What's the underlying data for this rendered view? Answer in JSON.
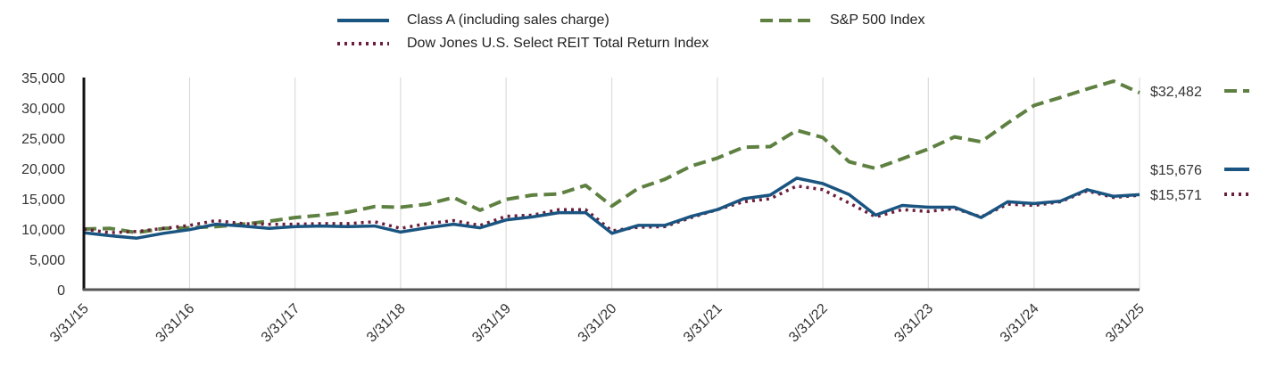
{
  "chart_data": {
    "type": "line",
    "title": "",
    "xlabel": "",
    "ylabel": "",
    "ylim": [
      0,
      35000
    ],
    "yticks": [
      0,
      5000,
      10000,
      15000,
      20000,
      25000,
      30000,
      35000
    ],
    "ytick_labels": [
      "0",
      "5,000",
      "10,000",
      "15,000",
      "20,000",
      "25,000",
      "30,000",
      "35,000"
    ],
    "xtick_labels": [
      "3/31/15",
      "3/31/16",
      "3/31/17",
      "3/31/18",
      "3/31/19",
      "3/31/20",
      "3/31/21",
      "3/31/22",
      "3/31/23",
      "3/31/24",
      "3/31/25"
    ],
    "grid": "vertical",
    "legend_placement": "top-center",
    "series": [
      {
        "name": "Class A (including sales charge)",
        "color": "#1a5480",
        "style": "solid",
        "end_label": "$15,676",
        "points": [
          [
            "3/31/15",
            9400
          ],
          [
            "6/30/15",
            8900
          ],
          [
            "9/30/15",
            8500
          ],
          [
            "12/31/15",
            9300
          ],
          [
            "3/31/16",
            9900
          ],
          [
            "6/30/16",
            10800
          ],
          [
            "9/30/16",
            10500
          ],
          [
            "12/31/16",
            10100
          ],
          [
            "3/31/17",
            10400
          ],
          [
            "6/30/17",
            10500
          ],
          [
            "9/30/17",
            10400
          ],
          [
            "12/31/17",
            10500
          ],
          [
            "3/31/18",
            9500
          ],
          [
            "6/30/18",
            10200
          ],
          [
            "9/30/18",
            10800
          ],
          [
            "12/31/18",
            10200
          ],
          [
            "3/31/19",
            11500
          ],
          [
            "6/30/19",
            12000
          ],
          [
            "9/30/19",
            12700
          ],
          [
            "12/31/19",
            12700
          ],
          [
            "3/31/20",
            9300
          ],
          [
            "6/30/20",
            10600
          ],
          [
            "9/30/20",
            10600
          ],
          [
            "12/31/20",
            12100
          ],
          [
            "3/31/21",
            13200
          ],
          [
            "6/30/21",
            15000
          ],
          [
            "9/30/21",
            15600
          ],
          [
            "12/31/21",
            18400
          ],
          [
            "3/31/22",
            17500
          ],
          [
            "6/30/22",
            15700
          ],
          [
            "9/30/22",
            12300
          ],
          [
            "12/31/22",
            13900
          ],
          [
            "3/31/23",
            13600
          ],
          [
            "6/30/23",
            13600
          ],
          [
            "9/30/23",
            11900
          ],
          [
            "12/31/23",
            14500
          ],
          [
            "3/31/24",
            14200
          ],
          [
            "6/30/24",
            14600
          ],
          [
            "9/30/24",
            16500
          ],
          [
            "12/31/24",
            15400
          ],
          [
            "3/31/25",
            15676
          ]
        ]
      },
      {
        "name": "S&P 500 Index",
        "color": "#5e8040",
        "style": "dashed",
        "end_label": "$32,482",
        "points": [
          [
            "3/31/15",
            10000
          ],
          [
            "6/30/15",
            10100
          ],
          [
            "9/30/15",
            9400
          ],
          [
            "12/31/15",
            10100
          ],
          [
            "3/31/16",
            10200
          ],
          [
            "6/30/16",
            10400
          ],
          [
            "9/30/16",
            10800
          ],
          [
            "12/31/16",
            11300
          ],
          [
            "3/31/17",
            11900
          ],
          [
            "6/30/17",
            12300
          ],
          [
            "9/30/17",
            12800
          ],
          [
            "12/31/17",
            13700
          ],
          [
            "3/31/18",
            13600
          ],
          [
            "6/30/18",
            14100
          ],
          [
            "9/30/18",
            15200
          ],
          [
            "12/31/18",
            13100
          ],
          [
            "3/31/19",
            14900
          ],
          [
            "6/30/19",
            15600
          ],
          [
            "9/30/19",
            15800
          ],
          [
            "12/31/19",
            17200
          ],
          [
            "3/31/20",
            13800
          ],
          [
            "6/30/20",
            16700
          ],
          [
            "9/30/20",
            18200
          ],
          [
            "12/31/20",
            20400
          ],
          [
            "3/31/21",
            21700
          ],
          [
            "6/30/21",
            23500
          ],
          [
            "9/30/21",
            23600
          ],
          [
            "12/31/21",
            26300
          ],
          [
            "3/31/22",
            25100
          ],
          [
            "6/30/22",
            21100
          ],
          [
            "9/30/22",
            20000
          ],
          [
            "12/31/22",
            21600
          ],
          [
            "3/31/23",
            23200
          ],
          [
            "6/30/23",
            25200
          ],
          [
            "9/30/23",
            24400
          ],
          [
            "12/31/23",
            27500
          ],
          [
            "3/31/24",
            30400
          ],
          [
            "6/30/24",
            31700
          ],
          [
            "9/30/24",
            33100
          ],
          [
            "12/31/24",
            34400
          ],
          [
            "3/31/25",
            32482
          ]
        ]
      },
      {
        "name": "Dow Jones U.S. Select REIT Total Return Index",
        "color": "#6b1d3c",
        "style": "dotted",
        "end_label": "$15,571",
        "points": [
          [
            "3/31/15",
            10000
          ],
          [
            "6/30/15",
            9400
          ],
          [
            "9/30/15",
            9600
          ],
          [
            "12/31/15",
            10100
          ],
          [
            "3/31/16",
            10600
          ],
          [
            "6/30/16",
            11400
          ],
          [
            "9/30/16",
            10900
          ],
          [
            "12/31/16",
            10800
          ],
          [
            "3/31/17",
            10800
          ],
          [
            "6/30/17",
            10900
          ],
          [
            "9/30/17",
            10900
          ],
          [
            "12/31/17",
            11200
          ],
          [
            "3/31/18",
            10100
          ],
          [
            "6/30/18",
            10900
          ],
          [
            "9/30/18",
            11400
          ],
          [
            "12/31/18",
            10600
          ],
          [
            "3/31/19",
            12100
          ],
          [
            "6/30/19",
            12300
          ],
          [
            "9/30/19",
            13200
          ],
          [
            "12/31/19",
            13200
          ],
          [
            "3/31/20",
            9700
          ],
          [
            "6/30/20",
            10300
          ],
          [
            "9/30/20",
            10400
          ],
          [
            "12/31/20",
            11900
          ],
          [
            "3/31/21",
            13200
          ],
          [
            "6/30/21",
            14500
          ],
          [
            "9/30/21",
            15000
          ],
          [
            "12/31/21",
            17100
          ],
          [
            "3/31/22",
            16500
          ],
          [
            "6/30/22",
            14300
          ],
          [
            "9/30/22",
            12000
          ],
          [
            "12/31/22",
            13200
          ],
          [
            "3/31/23",
            12900
          ],
          [
            "6/30/23",
            13400
          ],
          [
            "9/30/23",
            12000
          ],
          [
            "12/31/23",
            14100
          ],
          [
            "3/31/24",
            13900
          ],
          [
            "6/30/24",
            14500
          ],
          [
            "9/30/24",
            16300
          ],
          [
            "12/31/24",
            15200
          ],
          [
            "3/31/25",
            15571
          ]
        ]
      }
    ]
  }
}
